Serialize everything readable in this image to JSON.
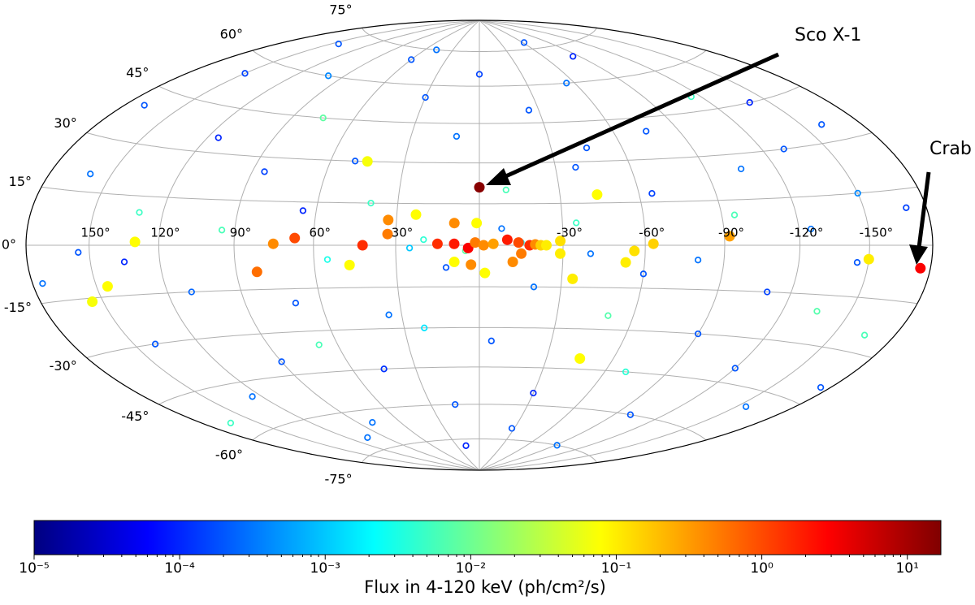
{
  "chart_data": {
    "type": "sky-map",
    "projection": "hammer",
    "xlim": [
      180,
      -180
    ],
    "ylim": [
      -90,
      90
    ],
    "grid": true,
    "xticks": [
      {
        "value": 150,
        "label": "150°"
      },
      {
        "value": 120,
        "label": "120°"
      },
      {
        "value": 90,
        "label": "90°"
      },
      {
        "value": 60,
        "label": "60°"
      },
      {
        "value": 30,
        "label": "30°"
      },
      {
        "value": -30,
        "label": "-30°"
      },
      {
        "value": -60,
        "label": "-60°"
      },
      {
        "value": -90,
        "label": "-90°"
      },
      {
        "value": -120,
        "label": "-120°"
      },
      {
        "value": -150,
        "label": "-150°"
      }
    ],
    "yticks": [
      {
        "value": 75,
        "label": "75°"
      },
      {
        "value": 60,
        "label": "60°"
      },
      {
        "value": 45,
        "label": "45°"
      },
      {
        "value": 30,
        "label": "30°"
      },
      {
        "value": 15,
        "label": "15°"
      },
      {
        "value": 0,
        "label": "0°"
      },
      {
        "value": -15,
        "label": "-15°"
      },
      {
        "value": -30,
        "label": "-30°"
      },
      {
        "value": -45,
        "label": "-45°"
      },
      {
        "value": -60,
        "label": "-60°"
      },
      {
        "value": -75,
        "label": "-75°"
      }
    ],
    "groups": [
      {
        "marker": "open",
        "lon": [
          170,
          160,
          150,
          140,
          130,
          125,
          115,
          110,
          100,
          95,
          90,
          85,
          80,
          75,
          70,
          65,
          60,
          55,
          50,
          45,
          40,
          35,
          30,
          25,
          20,
          15,
          10,
          5,
          0,
          -5,
          -10,
          -15,
          -20,
          -25,
          -30,
          -35,
          -40,
          -45,
          -50,
          -55,
          -60,
          -65,
          -70,
          -75,
          -80,
          -85,
          -90,
          -95,
          -100,
          -105,
          -110,
          -115,
          -120,
          -125,
          -130,
          -135,
          -140,
          -145,
          -150,
          -155,
          -160,
          -165,
          -170,
          -175,
          175,
          165,
          145,
          135,
          105,
          12,
          -8,
          22,
          -28,
          48,
          -62,
          18,
          155,
          -92,
          68,
          -38
        ],
        "lat": [
          40,
          20,
          55,
          -30,
          10,
          -50,
          35,
          -15,
          60,
          5,
          -40,
          25,
          -65,
          45,
          -20,
          12,
          70,
          -5,
          30,
          -45,
          15,
          -25,
          55,
          -1,
          2,
          -60,
          40,
          -2,
          65,
          -35,
          20,
          1,
          -15,
          50,
          -55,
          8,
          -3,
          35,
          -25,
          60,
          -10,
          18,
          -45,
          40,
          -5,
          70,
          -30,
          10,
          -60,
          25,
          -15,
          50,
          -40,
          5,
          30,
          -20,
          45,
          -5,
          15,
          -50,
          35,
          -25,
          10,
          -40,
          -10,
          -55,
          70,
          -5,
          -70,
          -8,
          6,
          -30,
          -70,
          75,
          78,
          -78,
          -2,
          -75,
          -35,
          28
        ],
        "flux": [
          0.0002,
          0.0003,
          0.00015,
          0.0002,
          0.005,
          0.0003,
          0.0001,
          0.00025,
          0.0004,
          0.006,
          0.0002,
          0.00015,
          0.0003,
          0.008,
          0.0002,
          0.0001,
          0.0002,
          0.003,
          0.0002,
          0.00012,
          0.005,
          0.0003,
          0.0002,
          0.001,
          0.004,
          0.0002,
          0.0003,
          0.008,
          0.00015,
          0.0002,
          0.006,
          0.002,
          0.0003,
          0.0002,
          0.0001,
          0.005,
          0.0003,
          0.0002,
          0.007,
          0.0003,
          0.0002,
          0.00015,
          0.004,
          0.0002,
          0.0003,
          0.0001,
          0.0002,
          0.006,
          0.0002,
          0.0003,
          0.00015,
          0.005,
          0.0002,
          0.0003,
          0.0002,
          0.007,
          0.0001,
          0.0002,
          0.0004,
          0.0003,
          0.0002,
          0.006,
          0.00015,
          0.0002,
          0.0003,
          0.005,
          0.0002,
          0.0001,
          0.0003,
          0.0002,
          0.0003,
          0.0015,
          0.0002,
          0.0003,
          0.0002,
          0.0001,
          0.0002,
          0.0003,
          0.006,
          0.0002
        ]
      },
      {
        "marker": "filled",
        "lon": [
          130,
          145,
          155,
          75,
          67,
          82,
          47,
          45,
          42,
          33,
          33,
          23,
          15,
          9,
          9,
          4,
          1,
          1.5,
          -1.5,
          -2,
          3,
          9,
          -5,
          -10,
          -12,
          -14,
          -15,
          -18,
          -20,
          -22,
          -24,
          -29,
          -29,
          -34,
          -44,
          -53,
          -56,
          -63,
          -92,
          -150,
          -45,
          -175,
          0
        ],
        "lat": [
          1,
          -12,
          -16,
          0.5,
          2.5,
          -9,
          -7,
          30,
          0,
          9,
          4,
          11,
          0.5,
          8,
          0.5,
          -1,
          8,
          1,
          0,
          -10,
          -7,
          -6,
          0.5,
          2,
          -6,
          1,
          -3,
          0,
          0.3,
          0,
          0,
          1.5,
          -3,
          -12,
          18,
          -6,
          -2,
          0.5,
          3,
          -4,
          -41,
          -6,
          21
        ],
        "flux": [
          0.08,
          0.08,
          0.07,
          0.4,
          1,
          0.6,
          0.08,
          0.07,
          1.5,
          0.4,
          0.5,
          0.08,
          1.5,
          0.4,
          2,
          3,
          0.08,
          0.5,
          0.4,
          0.08,
          0.4,
          0.08,
          0.3,
          2,
          0.4,
          1,
          0.5,
          1.5,
          0.4,
          0.15,
          0.1,
          0.12,
          0.1,
          0.1,
          0.08,
          0.1,
          0.12,
          0.15,
          0.3,
          0.1,
          0.08,
          3,
          15
        ]
      }
    ],
    "annotations": [
      {
        "text": "Sco X-1"
      },
      {
        "text": "Crab"
      }
    ],
    "colorbar": {
      "label": "Flux in 4-120 keV (ph/cm²/s)",
      "colormap": "jet",
      "log": true,
      "lim": [
        1e-05,
        17
      ],
      "ticks": [
        {
          "value": 1e-05,
          "label": "10⁻⁵"
        },
        {
          "value": 0.0001,
          "label": "10⁻⁴"
        },
        {
          "value": 0.001,
          "label": "10⁻³"
        },
        {
          "value": 0.01,
          "label": "10⁻²"
        },
        {
          "value": 0.1,
          "label": "10⁻¹"
        },
        {
          "value": 1,
          "label": "10⁰"
        },
        {
          "value": 10,
          "label": "10¹"
        }
      ]
    }
  }
}
